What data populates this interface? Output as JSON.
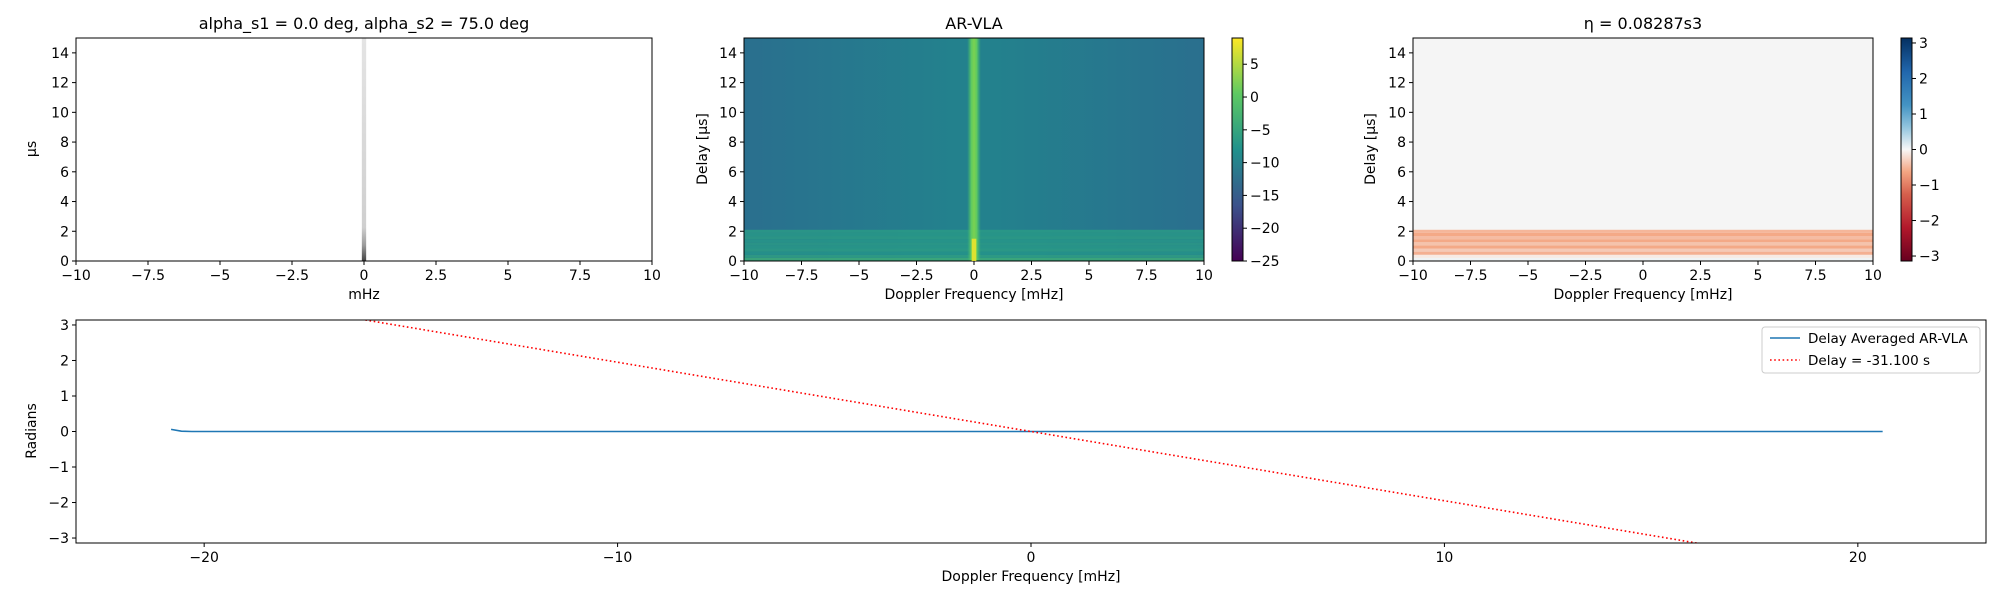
{
  "chart_data": [
    {
      "id": "p1",
      "type": "heatmap",
      "title": "alpha_s1 = 0.0 deg, alpha_s2 = 75.0 deg",
      "xlabel": "mHz",
      "ylabel": "µs",
      "xlim": [
        -10,
        10
      ],
      "ylim": [
        0,
        15
      ],
      "xticks": [
        -10,
        -7.5,
        -5,
        -2.5,
        0,
        2.5,
        5,
        7.5,
        10
      ],
      "yticks": [
        0,
        2,
        4,
        6,
        8,
        10,
        12,
        14
      ],
      "colormap": "greys",
      "features": [
        {
          "kind": "vertical_band",
          "x_center": 0.0,
          "width_mhz": 0.15,
          "intensity_at_delay": {
            "0": 0.85,
            "1": 0.5,
            "2": 0.35,
            "15": 0.12
          }
        }
      ]
    },
    {
      "id": "p2",
      "type": "heatmap",
      "title": "AR-VLA",
      "xlabel": "Doppler Frequency [mHz]",
      "ylabel": "Delay [$\\mu s$]",
      "ylabel_display": "Delay [μs]",
      "xlim": [
        -10,
        10
      ],
      "ylim": [
        0,
        15
      ],
      "xticks": [
        -10,
        -7.5,
        -5,
        -2.5,
        0,
        2.5,
        5,
        7.5,
        10
      ],
      "yticks": [
        0,
        2,
        4,
        6,
        8,
        10,
        12,
        14
      ],
      "colormap": "viridis",
      "colorbar": {
        "range": [
          -25,
          9
        ],
        "ticks": [
          5,
          0,
          -5,
          -10,
          -15,
          -20,
          -25
        ]
      },
      "features": [
        {
          "kind": "background",
          "value_center": -7.5,
          "value_edge": -10.5
        },
        {
          "kind": "vertical_band",
          "x_center": 0.0,
          "width_mhz": 0.6,
          "peak_value": 1.5
        },
        {
          "kind": "delay_rows",
          "delay_range": [
            0,
            2.1
          ],
          "row_values": [
            -4,
            -6,
            -7.5,
            -6.5,
            -7,
            -6.8,
            -7.2,
            -6.6,
            -7,
            -6.7
          ]
        }
      ]
    },
    {
      "id": "p3",
      "type": "heatmap",
      "title": "η = 0.08287s3",
      "xlabel": "Doppler Frequency [mHz]",
      "ylabel": "Delay [$\\mu s$]",
      "ylabel_display": "Delay [μs]",
      "xlim": [
        -10,
        10
      ],
      "ylim": [
        0,
        15
      ],
      "xticks": [
        -10,
        -7.5,
        -5,
        -2.5,
        0,
        2.5,
        5,
        7.5,
        10
      ],
      "yticks": [
        0,
        2,
        4,
        6,
        8,
        10,
        12,
        14
      ],
      "colormap": "RdBu",
      "colorbar": {
        "range": [
          -3.14,
          3.14
        ],
        "ticks": [
          3,
          2,
          1,
          0,
          -1,
          -2,
          -3
        ]
      },
      "features": [
        {
          "kind": "background",
          "value": 0.0
        },
        {
          "kind": "delay_rows",
          "delay_range": [
            0,
            2.1
          ],
          "row_values": [
            0.05,
            -0.1,
            -0.55,
            -0.35,
            -0.6,
            -0.4,
            -0.6,
            -0.45,
            -0.6,
            -0.5
          ]
        }
      ]
    },
    {
      "id": "p4",
      "type": "line",
      "xlabel": "Doppler Frequency [mHz]",
      "ylabel": "Radians",
      "xlim": [
        -23.1,
        23.1
      ],
      "ylim": [
        -3.14,
        3.14
      ],
      "xticks": [
        -20,
        -10,
        0,
        10,
        20
      ],
      "yticks": [
        3,
        2,
        1,
        0,
        -1,
        -2,
        -3
      ],
      "legend": "top-right",
      "series": [
        {
          "name": "Delay Averaged  AR-VLA",
          "color": "#1f77b4",
          "style": "solid",
          "x": [
            -20.8,
            -20.55,
            -20.3,
            0,
            20.6
          ],
          "y": [
            0.06,
            0.01,
            0.0,
            0.0,
            0.0
          ]
        },
        {
          "name": "Delay = -31.100 s",
          "color": "#ff0000",
          "style": "dotted",
          "x": [
            -16.1,
            16.1
          ],
          "y": [
            3.14,
            -3.14
          ]
        }
      ]
    }
  ]
}
